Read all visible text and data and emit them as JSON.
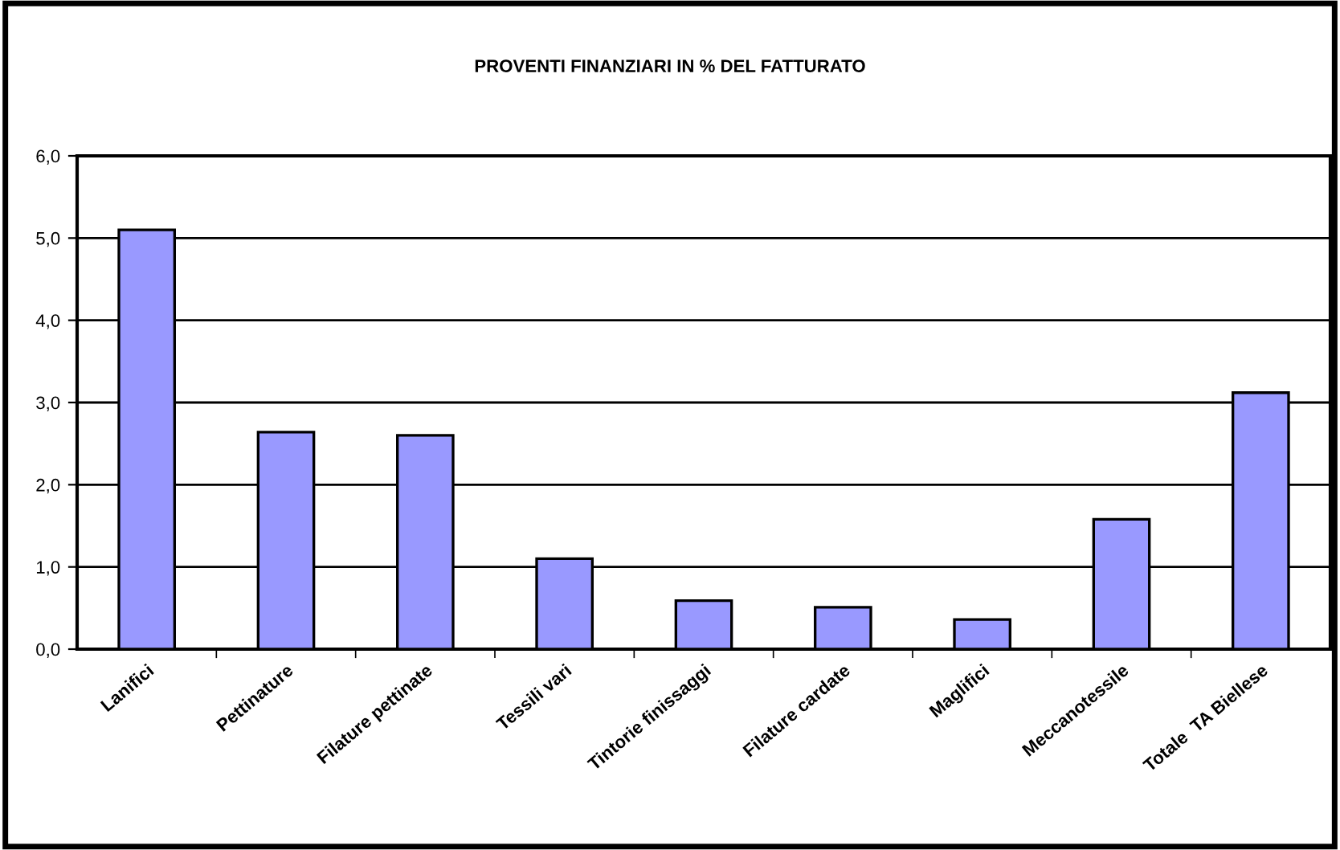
{
  "chart_data": {
    "type": "bar",
    "title": "PROVENTI FINANZIARI IN % DEL FATTURATO",
    "categories": [
      "Lanifici",
      "Pettinature",
      "Filature pettinate",
      "Tessili vari",
      "Tintorie finissaggi",
      "Filature cardate",
      "Maglifici",
      "Meccanotessile",
      "Totale  TA Biellese"
    ],
    "values": [
      5.1,
      2.64,
      2.6,
      1.1,
      0.59,
      0.51,
      0.36,
      1.58,
      3.12
    ],
    "color": "#9999ff",
    "ylim": [
      0,
      6
    ],
    "yticks": [
      {
        "value": 0,
        "label": "0,0"
      },
      {
        "value": 1,
        "label": "1,0"
      },
      {
        "value": 2,
        "label": "2,0"
      },
      {
        "value": 3,
        "label": "3,0"
      },
      {
        "value": 4,
        "label": "4,0"
      },
      {
        "value": 5,
        "label": "5,0"
      },
      {
        "value": 6,
        "label": "6,0"
      }
    ],
    "grid": "y",
    "legend": false
  }
}
